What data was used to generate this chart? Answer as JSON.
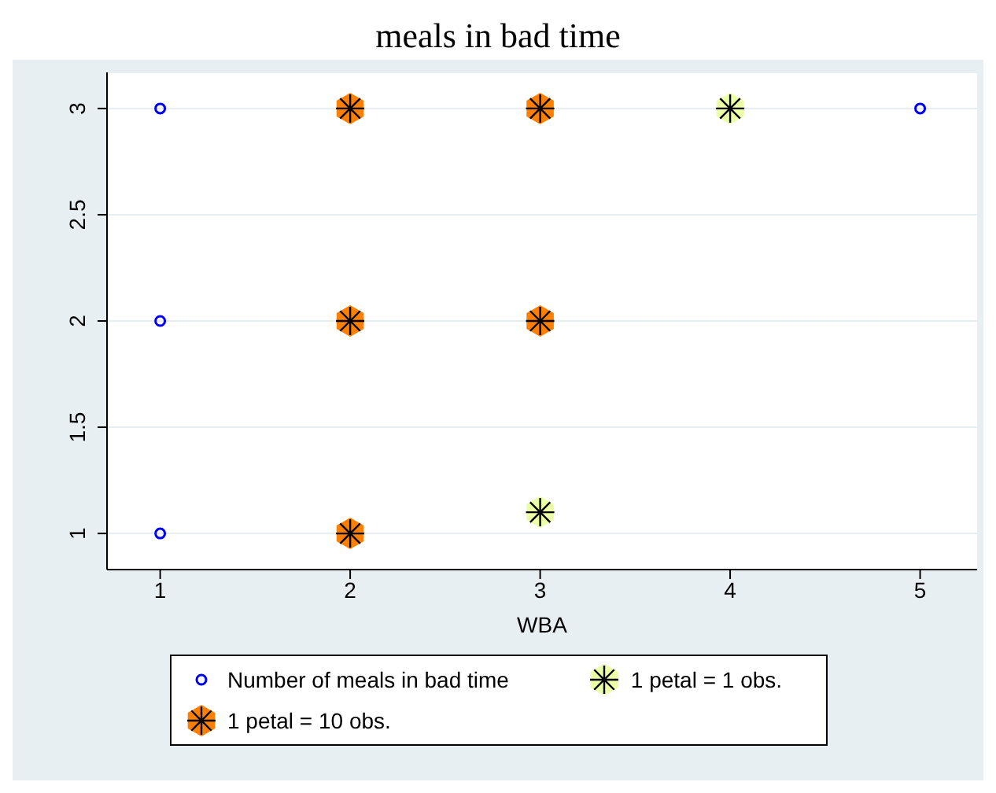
{
  "chart_data": {
    "type": "scatter",
    "title": "meals in bad time",
    "xlabel": "WBA",
    "xlim": [
      0.72,
      5.3
    ],
    "xticks": [
      1,
      2,
      3,
      4,
      5
    ],
    "ylim": [
      0.83,
      3.17
    ],
    "yticks": [
      1,
      1.5,
      2,
      2.5,
      3
    ],
    "grid": "y",
    "legend": "bottom",
    "series": [
      {
        "name": "Number of meals in bad time",
        "color": "#0000ff",
        "marker": "circle",
        "x": [
          1,
          1,
          1,
          5
        ],
        "values": [
          3,
          2,
          1,
          3
        ]
      },
      {
        "name": "1 petal = 1 obs.",
        "color": "#eaffa6",
        "marker": "star",
        "x": [
          4,
          3
        ],
        "values": [
          3,
          1.1
        ]
      },
      {
        "name": "1 petal = 10 obs.",
        "color": "#ff8000",
        "marker": "star",
        "x": [
          2,
          3,
          2,
          3,
          2
        ],
        "values": [
          3,
          3,
          2,
          2,
          1
        ]
      }
    ]
  }
}
